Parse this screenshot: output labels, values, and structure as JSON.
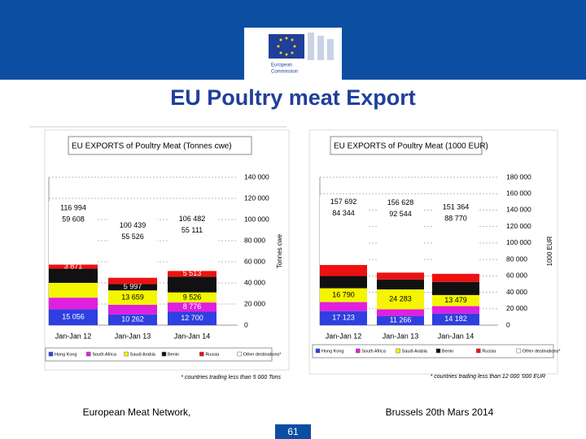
{
  "slide": {
    "org": [
      "European",
      "Commission"
    ],
    "title": "EU Poultry meat Export",
    "footer_left": "European Meat Network,",
    "footer_right": "Brussels 20th Mars 2014",
    "page": "61"
  },
  "chart_data": [
    {
      "type": "bar",
      "stacked": true,
      "title": "EU EXPORTS of Poultry Meat (Tonnes cwe)",
      "y_label": "Tonnes cwe",
      "categories": [
        "Jan-Jan 12",
        "Jan-Jan 13",
        "Jan-Jan 14"
      ],
      "series": [
        {
          "name": "Hong Kong",
          "color": "#2f3fe0",
          "values": [
            15056,
            10262,
            12700
          ],
          "value_labels": [
            "15 056",
            "10 262",
            "12 700"
          ]
        },
        {
          "name": "South Africa",
          "color": "#e020e0",
          "values": [
            11000,
            9000,
            8776
          ],
          "value_labels": [
            null,
            null,
            "8 776"
          ]
        },
        {
          "name": "Saudi Arabia",
          "color": "#f5f500",
          "values": [
            14000,
            13659,
            9526
          ],
          "value_labels": [
            null,
            "13 659",
            "9 526"
          ]
        },
        {
          "name": "Benin",
          "color": "#111111",
          "values": [
            13459,
            5997,
            14856
          ],
          "value_labels": [
            null,
            "5 997",
            null
          ]
        },
        {
          "name": "Russia",
          "color": "#ee1111",
          "values": [
            3871,
            5995,
            5513
          ],
          "value_labels": [
            "3 871",
            null,
            "5 513"
          ]
        },
        {
          "name": "Other destinations*",
          "color": "#ffffff",
          "values": [
            59608,
            55526,
            55111
          ],
          "value_labels": [
            "59 608",
            "55 526",
            "55 111"
          ]
        }
      ],
      "totals": [
        116994,
        100439,
        106482
      ],
      "total_labels": [
        "116 994",
        "100 439",
        "106 482"
      ],
      "ylim": [
        0,
        140000
      ],
      "yticks": [
        0,
        {
          "value": 20000,
          "label": "20 000"
        },
        {
          "value": 40000,
          "label": "40 000"
        },
        {
          "value": 60000,
          "label": "60 000"
        },
        {
          "value": 80000,
          "label": "80 000"
        },
        {
          "value": 100000,
          "label": "100 000"
        },
        {
          "value": 120000,
          "label": "120 000"
        },
        {
          "value": 140000,
          "label": "140 000"
        }
      ],
      "note": "* countries trading less than 5 000 Tons"
    },
    {
      "type": "bar",
      "stacked": true,
      "title": "EU EXPORTS of Poultry Meat (1000 EUR)",
      "y_label": "1000 EUR",
      "categories": [
        "Jan-Jan 12",
        "Jan-Jan 13",
        "Jan-Jan 14"
      ],
      "series": [
        {
          "name": "Hong Kong",
          "color": "#2f3fe0",
          "values": [
            17123,
            11266,
            14182
          ],
          "value_labels": [
            "17 123",
            "11 266",
            "14 182"
          ]
        },
        {
          "name": "South Africa",
          "color": "#e020e0",
          "values": [
            11000,
            8000,
            9000
          ],
          "value_labels": [
            null,
            null,
            null
          ]
        },
        {
          "name": "Saudi Arabia",
          "color": "#f5f500",
          "values": [
            16790,
            24283,
            13479
          ],
          "value_labels": [
            "16 790",
            "24 283",
            "13 479"
          ]
        },
        {
          "name": "Benin",
          "color": "#111111",
          "values": [
            15000,
            12000,
            16000
          ],
          "value_labels": [
            null,
            null,
            null
          ]
        },
        {
          "name": "Russia",
          "color": "#ee1111",
          "values": [
            13435,
            8535,
            9933
          ],
          "value_labels": [
            null,
            null,
            null
          ]
        },
        {
          "name": "Other destinations*",
          "color": "#ffffff",
          "values": [
            84344,
            92544,
            88770
          ],
          "value_labels": [
            "84 344",
            "92 544",
            "88 770"
          ]
        }
      ],
      "totals": [
        157692,
        156628,
        151364
      ],
      "total_labels": [
        "157 692",
        "156 628",
        "151 364"
      ],
      "ylim": [
        0,
        180000
      ],
      "yticks": [
        0,
        {
          "value": 20000,
          "label": "20 000"
        },
        {
          "value": 40000,
          "label": "40 000"
        },
        {
          "value": 60000,
          "label": "60 000"
        },
        {
          "value": 80000,
          "label": "80 000"
        },
        {
          "value": 100000,
          "label": "100 000"
        },
        {
          "value": 120000,
          "label": "120 000"
        },
        {
          "value": 140000,
          "label": "140 000"
        },
        {
          "value": 160000,
          "label": "160 000"
        },
        {
          "value": 180000,
          "label": "180 000"
        }
      ],
      "note": "* countries trading less than 12 000 '000 EUR"
    }
  ]
}
